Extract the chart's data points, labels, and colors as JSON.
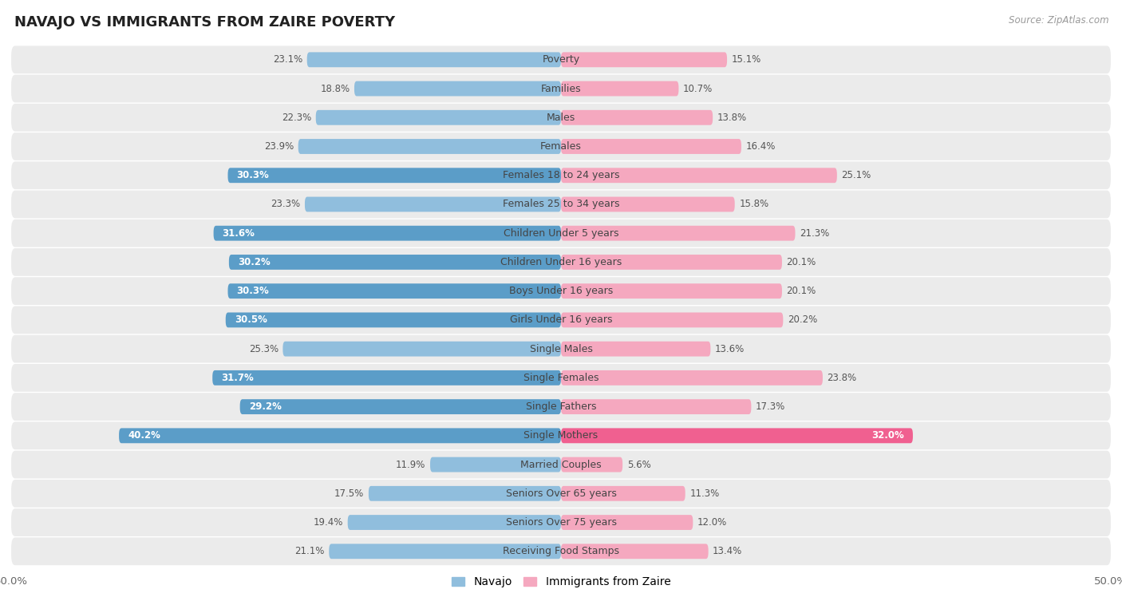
{
  "title": "NAVAJO VS IMMIGRANTS FROM ZAIRE POVERTY",
  "source": "Source: ZipAtlas.com",
  "categories": [
    "Poverty",
    "Families",
    "Males",
    "Females",
    "Females 18 to 24 years",
    "Females 25 to 34 years",
    "Children Under 5 years",
    "Children Under 16 years",
    "Boys Under 16 years",
    "Girls Under 16 years",
    "Single Males",
    "Single Females",
    "Single Fathers",
    "Single Mothers",
    "Married Couples",
    "Seniors Over 65 years",
    "Seniors Over 75 years",
    "Receiving Food Stamps"
  ],
  "navajo": [
    23.1,
    18.8,
    22.3,
    23.9,
    30.3,
    23.3,
    31.6,
    30.2,
    30.3,
    30.5,
    25.3,
    31.7,
    29.2,
    40.2,
    11.9,
    17.5,
    19.4,
    21.1
  ],
  "zaire": [
    15.1,
    10.7,
    13.8,
    16.4,
    25.1,
    15.8,
    21.3,
    20.1,
    20.1,
    20.2,
    13.6,
    23.8,
    17.3,
    32.0,
    5.6,
    11.3,
    12.0,
    13.4
  ],
  "navajo_normal_color": "#90bedd",
  "navajo_highlight_color": "#5b9dc8",
  "zaire_normal_color": "#f5a8bf",
  "zaire_highlight_color": "#f06090",
  "row_bg_color": "#e8e8e8",
  "row_bg_alt": "#f0f0f0",
  "axis_limit": 50.0,
  "bar_height": 0.52,
  "label_fontsize": 9.0,
  "title_fontsize": 13,
  "value_fontsize": 8.5,
  "legend_fontsize": 10,
  "navajo_highlight_thresh": 28.0,
  "zaire_highlight_thresh": 30.0
}
